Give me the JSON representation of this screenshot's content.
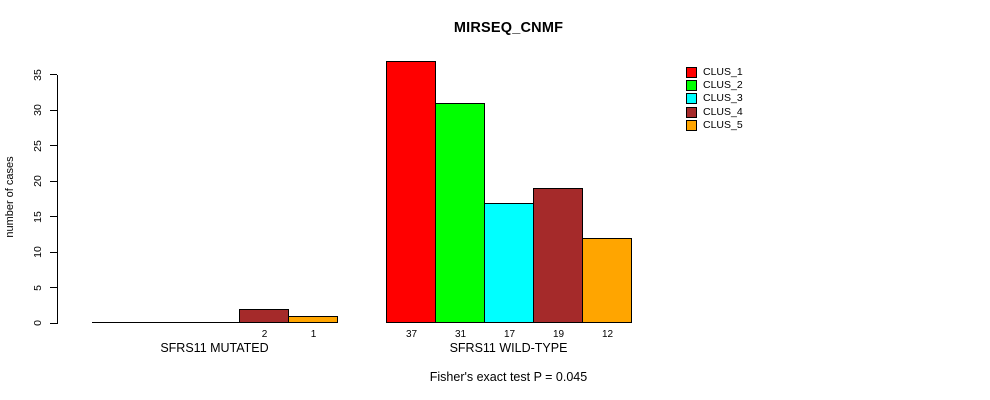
{
  "title": "MIRSEQ_CNMF",
  "footer": "Fisher's exact test P = 0.045",
  "y_axis": {
    "label": "number of cases",
    "ticks": [
      0,
      5,
      10,
      15,
      20,
      25,
      30,
      35
    ]
  },
  "legend": {
    "position": "top-right",
    "items": [
      {
        "label": "CLUS_1",
        "color": "#FF0000"
      },
      {
        "label": "CLUS_2",
        "color": "#00FF00"
      },
      {
        "label": "CLUS_3",
        "color": "#00FFFF"
      },
      {
        "label": "CLUS_4",
        "color": "#A52A2A"
      },
      {
        "label": "CLUS_5",
        "color": "#FFA500"
      }
    ]
  },
  "chart_data": {
    "type": "bar",
    "title": "MIRSEQ_CNMF",
    "xlabel": "",
    "ylabel": "number of cases",
    "ylim": [
      0,
      37
    ],
    "grid": false,
    "legend_position": "top-right",
    "series_names": [
      "CLUS_1",
      "CLUS_2",
      "CLUS_3",
      "CLUS_4",
      "CLUS_5"
    ],
    "series_colors": [
      "#FF0000",
      "#00FF00",
      "#00FFFF",
      "#A52A2A",
      "#FFA500"
    ],
    "groups": [
      {
        "label": "SFRS11 MUTATED",
        "values": [
          0,
          0,
          0,
          2,
          1
        ]
      },
      {
        "label": "SFRS11 WILD-TYPE",
        "values": [
          37,
          31,
          17,
          19,
          12
        ]
      }
    ],
    "bar_value_labels": [
      [
        "",
        "",
        "",
        "2",
        "1"
      ],
      [
        "37",
        "31",
        "17",
        "19",
        "12"
      ]
    ],
    "annotation": "Fisher's exact test P = 0.045"
  }
}
